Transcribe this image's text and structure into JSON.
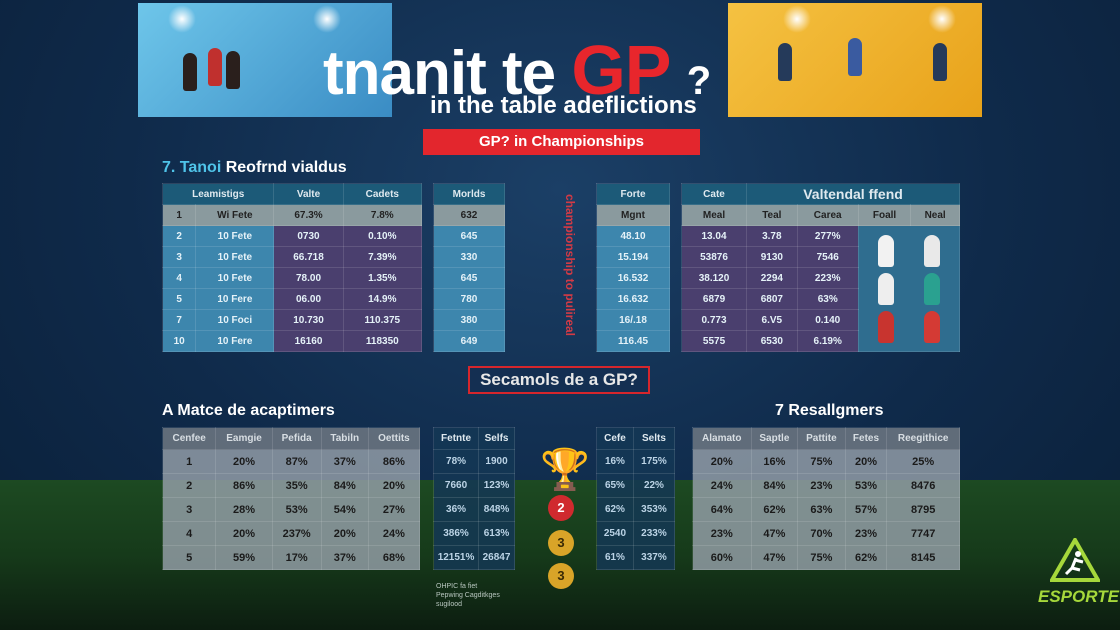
{
  "header": {
    "title_part1": "tnanit te",
    "title_gp": "GP",
    "title_q": "?",
    "subtitle": "in the table adeflictions",
    "banner": "GP? in Championships"
  },
  "section1": {
    "number": "7. Tanoi",
    "title": "Reofrnd vialdus"
  },
  "table1": {
    "headers": [
      "Leamistigs",
      "Valte",
      "Cadets"
    ],
    "rows": [
      [
        "1",
        "Wi Fete",
        "67.3%",
        "7.8%"
      ],
      [
        "2",
        "10 Fete",
        "0730",
        "0.10%"
      ],
      [
        "3",
        "10 Fete",
        "66.718",
        "7.39%"
      ],
      [
        "4",
        "10 Fete",
        "78.00",
        "1.35%"
      ],
      [
        "5",
        "10 Fere",
        "06.00",
        "14.9%"
      ],
      [
        "7",
        "10 Foci",
        "10.730",
        "110.375"
      ],
      [
        "10",
        "10 Fere",
        "16160",
        "118350"
      ]
    ]
  },
  "table2": {
    "headers": [
      "Morlds"
    ],
    "rows": [
      [
        "632"
      ],
      [
        "645"
      ],
      [
        "330"
      ],
      [
        "645"
      ],
      [
        "780"
      ],
      [
        "380"
      ],
      [
        "649"
      ]
    ]
  },
  "vertical_text": "championship to pulireal",
  "table3": {
    "headers": [
      "Forte"
    ],
    "rows": [
      [
        "Mgnt"
      ],
      [
        "48.10"
      ],
      [
        "15.194"
      ],
      [
        "16.532"
      ],
      [
        "16.632"
      ],
      [
        "16/.18"
      ],
      [
        "116.45"
      ]
    ]
  },
  "table4": {
    "title_left": "Cate",
    "title": "Valtendal ffend",
    "headers": [
      "Meal",
      "Teal",
      "Carea",
      "Foall",
      "Neal"
    ],
    "rows": [
      [
        "13.04",
        "3.78",
        "277%"
      ],
      [
        "53876",
        "9130",
        "7546"
      ],
      [
        "38.120",
        "2294",
        "223%"
      ],
      [
        "6879",
        "6807",
        "63%"
      ],
      [
        "0.773",
        "6.V5",
        "0.140"
      ],
      [
        "5575",
        "6530",
        "6.19%"
      ]
    ]
  },
  "banner2": "Secamols de a GP?",
  "section2": {
    "title": "A Matce de acaptimers"
  },
  "section3": {
    "title": "7 Resallgmers"
  },
  "btable1": {
    "headers": [
      "Cenfee",
      "Eamgie",
      "Pefida",
      "Tabiln",
      "Oettits"
    ],
    "rows": [
      [
        "1",
        "20%",
        "87%",
        "37%",
        "86%"
      ],
      [
        "2",
        "86%",
        "35%",
        "84%",
        "20%"
      ],
      [
        "3",
        "28%",
        "53%",
        "54%",
        "27%"
      ],
      [
        "4",
        "20%",
        "237%",
        "20%",
        "24%"
      ],
      [
        "5",
        "59%",
        "17%",
        "37%",
        "68%"
      ]
    ]
  },
  "btable2": {
    "headers": [
      "Fetnte",
      "Selfs"
    ],
    "rows": [
      [
        "78%",
        "1900"
      ],
      [
        "7660",
        "123%"
      ],
      [
        "36%",
        "848%"
      ],
      [
        "386%",
        "613%"
      ],
      [
        "12151%",
        "26847"
      ]
    ]
  },
  "medals": [
    "2",
    "3",
    "3"
  ],
  "btable3": {
    "headers": [
      "Cefe",
      "Selts"
    ],
    "rows": [
      [
        "16%",
        "175%"
      ],
      [
        "65%",
        "22%"
      ],
      [
        "62%",
        "353%"
      ],
      [
        "2540",
        "233%"
      ],
      [
        "61%",
        "337%"
      ]
    ]
  },
  "btable4": {
    "headers": [
      "Alamato",
      "Saptle",
      "Pattite",
      "Fetes",
      "Reegithice"
    ],
    "rows": [
      [
        "20%",
        "16%",
        "75%",
        "20%",
        "25%"
      ],
      [
        "24%",
        "84%",
        "23%",
        "53%",
        "8476"
      ],
      [
        "64%",
        "62%",
        "63%",
        "57%",
        "8795"
      ],
      [
        "23%",
        "47%",
        "70%",
        "23%",
        "7747"
      ],
      [
        "60%",
        "47%",
        "75%",
        "62%",
        "8145"
      ]
    ]
  },
  "footnote_mid": [
    "OHPIC fa fiet",
    "Pepwing Cagditkges",
    "sugilood"
  ],
  "logo": "ESPORTE",
  "colors": {
    "accent": "#e3262d",
    "navy": "#0f2a4a",
    "logo": "#a6d83b"
  }
}
